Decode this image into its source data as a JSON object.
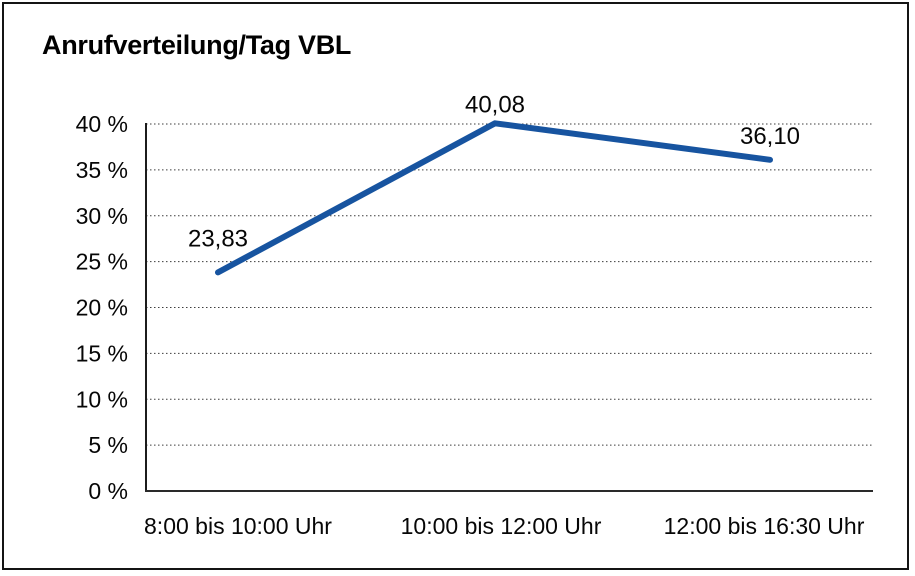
{
  "chart_data": {
    "type": "line",
    "title": "Anrufverteilung/Tag VBL",
    "categories": [
      "8:00 bis 10:00 Uhr",
      "10:00 bis 12:00 Uhr",
      "12:00 bis 16:30 Uhr"
    ],
    "values": [
      23.83,
      40.08,
      36.1
    ],
    "data_labels": [
      "23,83",
      "40,08",
      "36,10"
    ],
    "y_tick_labels": [
      "0 %",
      "5 %",
      "10 %",
      "15 %",
      "20 %",
      "25 %",
      "30 %",
      "35 %",
      "40 %"
    ],
    "ylim": [
      0,
      40
    ],
    "y_step": 5,
    "xlabel": "",
    "ylabel": "",
    "line_color": "#1754A0",
    "grid": "dotted-horizontal",
    "legend_position": "none",
    "text_color": "#060606",
    "axis_color": "#2a2a2a",
    "gridline_color": "#3d3d3d"
  }
}
